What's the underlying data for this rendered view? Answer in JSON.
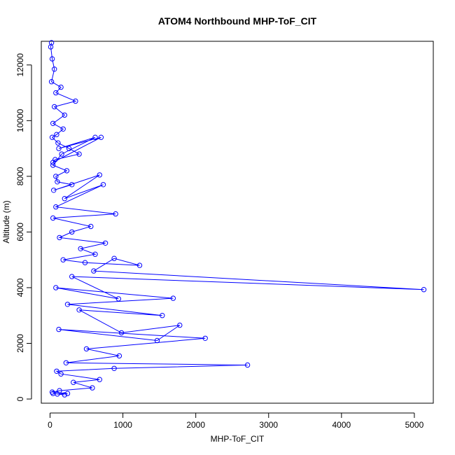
{
  "chart_data": {
    "type": "scatter",
    "title": "ATOM4 Northbound MHP-ToF_CIT",
    "xlabel": "MHP-ToF_CIT",
    "ylabel": "Altitude (m)",
    "xlim": [
      -120,
      5260
    ],
    "ylim": [
      -150,
      12850
    ],
    "xticks": [
      0,
      1000,
      2000,
      3000,
      4000,
      5000
    ],
    "yticks": [
      0,
      2000,
      4000,
      6000,
      8000,
      10000,
      12000
    ],
    "xtick_labels": [
      "0",
      "1000",
      "2000",
      "3000",
      "4000",
      "5000"
    ],
    "ytick_labels": [
      "0",
      "2000",
      "4000",
      "6000",
      "8000",
      "10000",
      "12000"
    ],
    "grid": false,
    "legend": "none",
    "color": "#0000ff",
    "marker": "open-circle",
    "connected": true,
    "series": [
      {
        "x": [
          20,
          10,
          30,
          60,
          20,
          150,
          80,
          350,
          60,
          200,
          40,
          180,
          90,
          30,
          110,
          260,
          400,
          70,
          40,
          700,
          120,
          620,
          160,
          40,
          230,
          80,
          100,
          300,
          50,
          680,
          200,
          730,
          80,
          900,
          40,
          560,
          300,
          130,
          760,
          420,
          620,
          180,
          480,
          1230,
          880,
          600,
          5130,
          300,
          940,
          80,
          1690,
          240,
          1540,
          400,
          980,
          1780,
          1470,
          120,
          2130,
          500,
          950,
          220,
          2710,
          880,
          90,
          150,
          680,
          320,
          580,
          130,
          30,
          240,
          100,
          200,
          40
        ],
        "y": [
          12800,
          12650,
          12220,
          11850,
          11400,
          11200,
          11000,
          10700,
          10500,
          10200,
          9900,
          9700,
          9500,
          9400,
          9200,
          9000,
          8800,
          8600,
          8500,
          9400,
          9000,
          9400,
          8800,
          8400,
          8200,
          8000,
          7800,
          7700,
          7500,
          8050,
          7200,
          7700,
          6900,
          6650,
          6500,
          6200,
          6000,
          5800,
          5600,
          5400,
          5200,
          5000,
          4900,
          4800,
          5050,
          4600,
          3930,
          4400,
          3600,
          4000,
          3620,
          3400,
          3000,
          3200,
          2380,
          2650,
          2100,
          2500,
          2180,
          1800,
          1550,
          1300,
          1220,
          1100,
          1000,
          900,
          700,
          600,
          400,
          300,
          250,
          200,
          180,
          150,
          200
        ]
      }
    ]
  }
}
